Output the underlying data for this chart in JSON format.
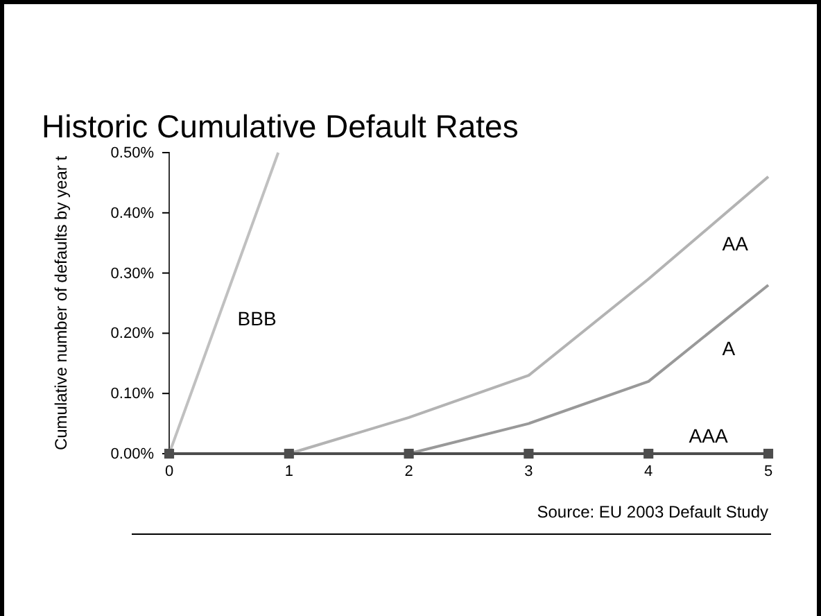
{
  "chart_data": {
    "type": "line",
    "title": "Historic Cumulative Default Rates",
    "ylabel": "Cumulative number of defaults by year t",
    "xlim": [
      0,
      5
    ],
    "xticks": [
      0,
      1,
      2,
      3,
      4,
      5
    ],
    "ylim": [
      0,
      0.5
    ],
    "yticks": [
      {
        "value": 0,
        "label": "0.00%"
      },
      {
        "value": 0.1,
        "label": "0.10%"
      },
      {
        "value": 0.2,
        "label": "0.20%"
      },
      {
        "value": 0.3,
        "label": "0.30%"
      },
      {
        "value": 0.4,
        "label": "0.40%"
      },
      {
        "value": 0.5,
        "label": "0.50%"
      }
    ],
    "grid": false,
    "legend": false,
    "line_style": "solid",
    "series": [
      {
        "name": "BBB",
        "color": "#c0c0c0",
        "marker": "none",
        "x": [
          0,
          0.91
        ],
        "values": [
          0,
          0.5
        ]
      },
      {
        "name": "AA",
        "color": "#b3b3b3",
        "marker": "none",
        "x": [
          0,
          1,
          2,
          3,
          4,
          5
        ],
        "values": [
          0,
          0,
          0.06,
          0.13,
          0.29,
          0.46
        ]
      },
      {
        "name": "A",
        "color": "#999999",
        "marker": "none",
        "x": [
          0,
          1,
          2,
          3,
          4,
          5
        ],
        "values": [
          0,
          0,
          0,
          0.05,
          0.12,
          0.28
        ]
      },
      {
        "name": "AAA",
        "color": "#4d4d4d",
        "marker": "square",
        "x": [
          0,
          1,
          2,
          3,
          4,
          5
        ],
        "values": [
          0,
          0,
          0,
          0,
          0,
          0
        ]
      }
    ],
    "annotations": [
      "Source: EU 2003 Default Study"
    ]
  }
}
